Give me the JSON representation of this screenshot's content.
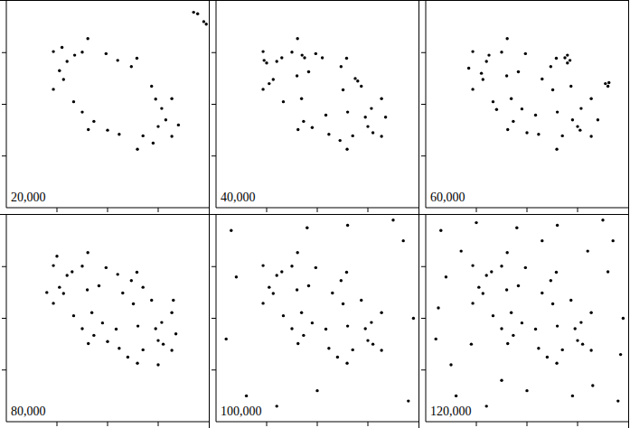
{
  "chart_data": [
    {
      "type": "scatter",
      "title": "20,000",
      "xlim": [
        0,
        4
      ],
      "ylim": [
        0,
        4
      ],
      "xticks": [
        1,
        2,
        3
      ],
      "yticks": [
        1,
        2,
        3
      ],
      "tick_labels": false,
      "color": "#000000",
      "marker": "dot",
      "points": [
        [
          3.0,
          1.57
        ],
        [
          3.07,
          1.92
        ],
        [
          2.87,
          2.35
        ],
        [
          2.47,
          2.73
        ],
        [
          1.97,
          2.98
        ],
        [
          1.5,
          3.01
        ],
        [
          1.2,
          2.83
        ],
        [
          1.13,
          2.48
        ],
        [
          1.33,
          2.05
        ],
        [
          1.73,
          1.67
        ],
        [
          2.23,
          1.42
        ],
        [
          2.7,
          1.39
        ],
        [
          3.27,
          1.38
        ],
        [
          3.27,
          2.11
        ],
        [
          2.58,
          2.89
        ],
        [
          1.61,
          3.27
        ],
        [
          0.93,
          3.02
        ],
        [
          0.93,
          2.29
        ],
        [
          1.62,
          1.51
        ],
        [
          2.59,
          1.13
        ],
        [
          3.15,
          1.7
        ],
        [
          2.95,
          2.1
        ],
        [
          2.2,
          2.85
        ],
        [
          1.35,
          2.95
        ],
        [
          1.05,
          2.65
        ],
        [
          1.5,
          1.85
        ],
        [
          2.0,
          1.5
        ],
        [
          2.9,
          1.25
        ],
        [
          3.4,
          1.6
        ],
        [
          1.1,
          3.1
        ],
        [
          3.7,
          3.78
        ],
        [
          3.78,
          3.75
        ],
        [
          3.9,
          3.6
        ],
        [
          3.95,
          3.55
        ]
      ]
    },
    {
      "type": "scatter",
      "title": "40,000",
      "xlim": [
        0,
        4
      ],
      "ylim": [
        0,
        4
      ],
      "xticks": [
        1,
        2,
        3
      ],
      "yticks": [
        1,
        2,
        3
      ],
      "tick_labels": false,
      "color": "#000000",
      "marker": "dot",
      "points": [
        [
          2.6,
          1.85
        ],
        [
          2.51,
          2.28
        ],
        [
          1.83,
          2.63
        ],
        [
          1.6,
          2.55
        ],
        [
          1.69,
          2.11
        ],
        [
          2.17,
          1.79
        ],
        [
          3.0,
          1.57
        ],
        [
          3.07,
          1.92
        ],
        [
          2.87,
          2.35
        ],
        [
          2.47,
          2.73
        ],
        [
          1.97,
          2.98
        ],
        [
          1.5,
          3.01
        ],
        [
          1.2,
          2.83
        ],
        [
          1.13,
          2.48
        ],
        [
          1.33,
          2.05
        ],
        [
          1.73,
          1.67
        ],
        [
          2.23,
          1.42
        ],
        [
          2.7,
          1.39
        ],
        [
          3.27,
          1.38
        ],
        [
          3.27,
          2.11
        ],
        [
          2.58,
          2.89
        ],
        [
          1.61,
          3.27
        ],
        [
          0.93,
          3.02
        ],
        [
          0.93,
          2.29
        ],
        [
          1.62,
          1.51
        ],
        [
          2.59,
          1.13
        ],
        [
          3.1,
          1.45
        ],
        [
          2.95,
          1.75
        ],
        [
          2.1,
          2.9
        ],
        [
          1.3,
          2.9
        ],
        [
          1.05,
          2.4
        ],
        [
          1.9,
          1.55
        ],
        [
          2.45,
          1.3
        ],
        [
          3.35,
          1.75
        ],
        [
          0.95,
          2.85
        ],
        [
          1.0,
          2.8
        ],
        [
          1.7,
          2.95
        ],
        [
          1.75,
          2.9
        ],
        [
          2.75,
          2.5
        ],
        [
          2.8,
          2.45
        ]
      ]
    },
    {
      "type": "scatter",
      "title": "60,000",
      "xlim": [
        0,
        4
      ],
      "ylim": [
        0,
        4
      ],
      "xticks": [
        1,
        2,
        3
      ],
      "yticks": [
        1,
        2,
        3
      ],
      "tick_labels": false,
      "color": "#000000",
      "marker": "dot",
      "points": [
        [
          2.6,
          1.85
        ],
        [
          2.51,
          2.28
        ],
        [
          2.3,
          2.49
        ],
        [
          1.83,
          2.63
        ],
        [
          1.6,
          2.55
        ],
        [
          1.69,
          2.11
        ],
        [
          1.9,
          1.91
        ],
        [
          2.17,
          1.79
        ],
        [
          3.0,
          1.57
        ],
        [
          3.07,
          1.92
        ],
        [
          2.87,
          2.35
        ],
        [
          2.47,
          2.73
        ],
        [
          1.97,
          2.98
        ],
        [
          1.5,
          3.01
        ],
        [
          1.2,
          2.83
        ],
        [
          1.13,
          2.48
        ],
        [
          1.33,
          2.05
        ],
        [
          1.73,
          1.67
        ],
        [
          2.23,
          1.42
        ],
        [
          2.7,
          1.39
        ],
        [
          3.27,
          1.38
        ],
        [
          3.27,
          2.11
        ],
        [
          2.58,
          2.89
        ],
        [
          1.61,
          3.27
        ],
        [
          0.93,
          3.02
        ],
        [
          0.93,
          2.29
        ],
        [
          1.62,
          1.51
        ],
        [
          2.59,
          1.13
        ],
        [
          3.05,
          1.5
        ],
        [
          2.9,
          1.7
        ],
        [
          1.25,
          2.95
        ],
        [
          1.1,
          2.6
        ],
        [
          1.4,
          1.9
        ],
        [
          2.0,
          1.45
        ],
        [
          3.4,
          1.7
        ],
        [
          0.85,
          2.7
        ],
        [
          2.75,
          2.9
        ],
        [
          2.8,
          2.95
        ],
        [
          2.85,
          2.85
        ],
        [
          2.8,
          2.8
        ],
        [
          3.55,
          2.4
        ],
        [
          3.6,
          2.35
        ],
        [
          3.62,
          2.42
        ]
      ]
    },
    {
      "type": "scatter",
      "title": "80,000",
      "xlim": [
        0,
        4
      ],
      "ylim": [
        0,
        4
      ],
      "xticks": [
        1,
        2,
        3
      ],
      "yticks": [
        1,
        2,
        3
      ],
      "tick_labels": false,
      "color": "#000000",
      "marker": "dot",
      "points": [
        [
          2.6,
          1.85
        ],
        [
          2.51,
          2.28
        ],
        [
          2.3,
          2.49
        ],
        [
          1.83,
          2.63
        ],
        [
          1.6,
          2.55
        ],
        [
          1.69,
          2.11
        ],
        [
          1.9,
          1.91
        ],
        [
          2.17,
          1.79
        ],
        [
          3.0,
          1.57
        ],
        [
          3.07,
          1.92
        ],
        [
          2.87,
          2.35
        ],
        [
          2.47,
          2.73
        ],
        [
          1.97,
          2.98
        ],
        [
          1.5,
          3.01
        ],
        [
          1.2,
          2.83
        ],
        [
          1.13,
          2.48
        ],
        [
          1.33,
          2.05
        ],
        [
          1.73,
          1.67
        ],
        [
          2.23,
          1.42
        ],
        [
          2.7,
          1.39
        ],
        [
          3.27,
          1.38
        ],
        [
          3.27,
          2.11
        ],
        [
          2.58,
          2.89
        ],
        [
          1.61,
          3.27
        ],
        [
          0.93,
          3.02
        ],
        [
          0.93,
          2.29
        ],
        [
          1.62,
          1.51
        ],
        [
          2.59,
          1.13
        ],
        [
          3.1,
          1.5
        ],
        [
          2.95,
          1.8
        ],
        [
          2.7,
          2.6
        ],
        [
          2.2,
          2.85
        ],
        [
          1.3,
          2.9
        ],
        [
          1.05,
          2.6
        ],
        [
          1.5,
          1.8
        ],
        [
          2.0,
          1.55
        ],
        [
          2.4,
          1.25
        ],
        [
          3.35,
          1.7
        ],
        [
          3.0,
          1.1
        ],
        [
          1.0,
          3.2
        ],
        [
          0.8,
          2.5
        ],
        [
          3.3,
          2.35
        ]
      ]
    },
    {
      "type": "scatter",
      "title": "100,000",
      "xlim": [
        0,
        4
      ],
      "ylim": [
        0,
        4
      ],
      "xticks": [
        1,
        2,
        3
      ],
      "yticks": [
        1,
        2,
        3
      ],
      "tick_labels": false,
      "color": "#000000",
      "marker": "dot",
      "points": [
        [
          2.6,
          1.85
        ],
        [
          2.51,
          2.28
        ],
        [
          2.3,
          2.49
        ],
        [
          1.83,
          2.63
        ],
        [
          1.6,
          2.55
        ],
        [
          1.69,
          2.11
        ],
        [
          1.9,
          1.91
        ],
        [
          2.17,
          1.79
        ],
        [
          3.0,
          1.57
        ],
        [
          3.07,
          1.92
        ],
        [
          2.87,
          2.35
        ],
        [
          2.47,
          2.73
        ],
        [
          1.97,
          2.98
        ],
        [
          1.5,
          3.01
        ],
        [
          1.2,
          2.83
        ],
        [
          1.13,
          2.48
        ],
        [
          1.33,
          2.05
        ],
        [
          1.73,
          1.67
        ],
        [
          2.23,
          1.42
        ],
        [
          2.7,
          1.39
        ],
        [
          3.27,
          1.38
        ],
        [
          3.27,
          2.11
        ],
        [
          2.58,
          2.89
        ],
        [
          1.61,
          3.27
        ],
        [
          0.93,
          3.02
        ],
        [
          0.93,
          2.29
        ],
        [
          1.62,
          1.51
        ],
        [
          2.59,
          1.13
        ],
        [
          3.1,
          1.5
        ],
        [
          2.95,
          1.8
        ],
        [
          1.3,
          2.9
        ],
        [
          1.05,
          2.6
        ],
        [
          1.5,
          1.8
        ],
        [
          2.4,
          1.25
        ],
        [
          0.3,
          3.7
        ],
        [
          0.6,
          0.5
        ],
        [
          3.7,
          3.5
        ],
        [
          3.8,
          0.4
        ],
        [
          0.2,
          1.6
        ],
        [
          3.5,
          3.9
        ],
        [
          1.2,
          0.3
        ],
        [
          2.6,
          3.8
        ],
        [
          3.9,
          2.0
        ],
        [
          0.4,
          2.8
        ],
        [
          2.0,
          0.6
        ],
        [
          1.8,
          3.75
        ]
      ]
    },
    {
      "type": "scatter",
      "title": "120,000",
      "xlim": [
        0,
        4
      ],
      "ylim": [
        0,
        4
      ],
      "xticks": [
        1,
        2,
        3
      ],
      "yticks": [
        1,
        2,
        3
      ],
      "tick_labels": false,
      "color": "#000000",
      "marker": "dot",
      "points": [
        [
          2.6,
          1.85
        ],
        [
          2.51,
          2.28
        ],
        [
          2.3,
          2.49
        ],
        [
          1.83,
          2.63
        ],
        [
          1.6,
          2.55
        ],
        [
          1.69,
          2.11
        ],
        [
          1.9,
          1.91
        ],
        [
          2.17,
          1.79
        ],
        [
          3.0,
          1.57
        ],
        [
          3.07,
          1.92
        ],
        [
          2.87,
          2.35
        ],
        [
          2.47,
          2.73
        ],
        [
          1.97,
          2.98
        ],
        [
          1.5,
          3.01
        ],
        [
          1.2,
          2.83
        ],
        [
          1.13,
          2.48
        ],
        [
          1.33,
          2.05
        ],
        [
          1.73,
          1.67
        ],
        [
          2.23,
          1.42
        ],
        [
          2.7,
          1.39
        ],
        [
          3.27,
          1.38
        ],
        [
          3.27,
          2.11
        ],
        [
          2.58,
          2.89
        ],
        [
          1.61,
          3.27
        ],
        [
          0.93,
          3.02
        ],
        [
          0.93,
          2.29
        ],
        [
          1.62,
          1.51
        ],
        [
          2.59,
          1.13
        ],
        [
          3.1,
          1.5
        ],
        [
          2.95,
          1.8
        ],
        [
          1.3,
          2.9
        ],
        [
          1.05,
          2.6
        ],
        [
          1.5,
          1.8
        ],
        [
          2.4,
          1.25
        ],
        [
          0.3,
          3.7
        ],
        [
          0.6,
          0.5
        ],
        [
          3.7,
          3.5
        ],
        [
          3.8,
          0.4
        ],
        [
          0.2,
          1.6
        ],
        [
          3.5,
          3.9
        ],
        [
          1.2,
          0.3
        ],
        [
          2.6,
          3.8
        ],
        [
          3.9,
          2.0
        ],
        [
          0.4,
          2.8
        ],
        [
          2.0,
          0.6
        ],
        [
          1.8,
          3.75
        ],
        [
          0.7,
          3.3
        ],
        [
          3.3,
          0.7
        ],
        [
          0.5,
          1.1
        ],
        [
          3.6,
          2.9
        ],
        [
          1.0,
          3.85
        ],
        [
          2.9,
          0.5
        ],
        [
          0.25,
          2.2
        ],
        [
          3.85,
          1.3
        ],
        [
          1.5,
          0.8
        ],
        [
          2.3,
          3.5
        ],
        [
          0.9,
          1.5
        ],
        [
          3.2,
          3.3
        ]
      ]
    }
  ]
}
